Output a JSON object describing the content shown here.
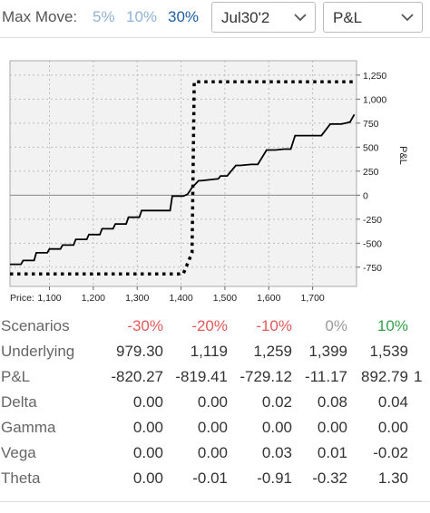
{
  "toolbar": {
    "max_move_label": "Max Move:",
    "max_move_options": [
      "5%",
      "10%",
      "30%"
    ],
    "selected_move": "30%",
    "date_select": "Jul30'2",
    "metric_select": "P&L"
  },
  "colors": {
    "move_option": "#8fb3d3",
    "move_selected": "#1f5fa0",
    "negative": "#e05a5a",
    "zero": "#999999",
    "positive": "#35a04a"
  },
  "chart_data": {
    "type": "line",
    "xlabel": "Price:",
    "ylabel": "P&L",
    "x_ticks": [
      "1,100",
      "1,200",
      "1,300",
      "1,400",
      "1,500",
      "1,600",
      "1,700"
    ],
    "y_ticks": [
      "1,250",
      "1,000",
      "750",
      "500",
      "250",
      "0",
      "-250",
      "-500",
      "-750"
    ],
    "xlim": [
      1010,
      1800
    ],
    "ylim": [
      -950,
      1400
    ],
    "grid": true,
    "series": [
      {
        "style": "solid",
        "x": [
          1010,
          1035,
          1040,
          1065,
          1070,
          1095,
          1100,
          1125,
          1130,
          1155,
          1160,
          1185,
          1190,
          1215,
          1220,
          1245,
          1250,
          1275,
          1280,
          1305,
          1310,
          1335,
          1345,
          1375,
          1380,
          1405,
          1415,
          1425,
          1440,
          1445,
          1485,
          1490,
          1505,
          1525,
          1535,
          1560,
          1575,
          1595,
          1615,
          1635,
          1650,
          1660,
          1690,
          1700,
          1720,
          1740,
          1765,
          1785,
          1795
        ],
        "y": [
          -720,
          -720,
          -680,
          -680,
          -600,
          -600,
          -560,
          -560,
          -520,
          -520,
          -460,
          -460,
          -410,
          -410,
          -350,
          -350,
          -300,
          -300,
          -230,
          -230,
          -160,
          -160,
          -160,
          -160,
          -10,
          -10,
          10,
          80,
          150,
          150,
          170,
          200,
          200,
          310,
          310,
          320,
          320,
          470,
          470,
          480,
          480,
          620,
          620,
          620,
          620,
          740,
          740,
          760,
          840
        ]
      },
      {
        "style": "dotted",
        "x": [
          1010,
          1405,
          1425,
          1430,
          1800
        ],
        "y": [
          -820,
          -820,
          -600,
          1180,
          1180
        ]
      }
    ]
  },
  "scenarios": {
    "label": "Scenarios",
    "values": [
      "-30%",
      "-20%",
      "-10%",
      "0%",
      "10%"
    ]
  },
  "table": [
    {
      "label": "Underlying",
      "values": [
        "979.30",
        "1,119",
        "1,259",
        "1,399",
        "1,539"
      ],
      "extra": ""
    },
    {
      "label": "P&L",
      "values": [
        "-820.27",
        "-819.41",
        "-729.12",
        "-11.17",
        "892.79"
      ],
      "extra": "1"
    },
    {
      "label": "Delta",
      "values": [
        "0.00",
        "0.00",
        "0.02",
        "0.08",
        "0.04"
      ],
      "extra": ""
    },
    {
      "label": "Gamma",
      "values": [
        "0.00",
        "0.00",
        "0.00",
        "0.00",
        "0.00"
      ],
      "extra": ""
    },
    {
      "label": "Vega",
      "values": [
        "0.00",
        "0.00",
        "0.03",
        "0.01",
        "-0.02"
      ],
      "extra": ""
    },
    {
      "label": "Theta",
      "values": [
        "0.00",
        "-0.01",
        "-0.91",
        "-0.32",
        "1.30"
      ],
      "extra": ""
    }
  ]
}
